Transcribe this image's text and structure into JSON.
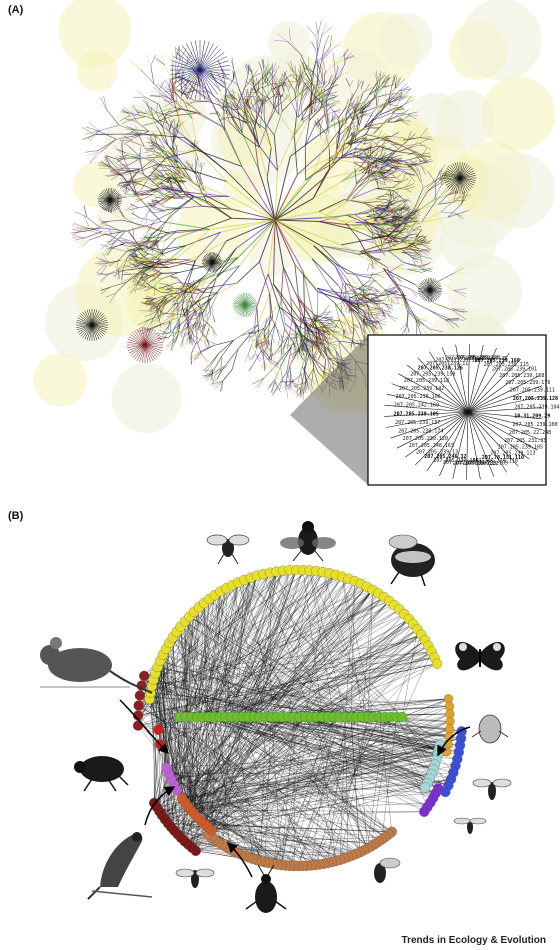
{
  "figure": {
    "panel_a_label": "(A)",
    "panel_b_label": "(B)",
    "footer": "Trends in Ecology & Evolution"
  },
  "inset_labels": [
    "10.31.209.29",
    "207.205.239.100",
    "207.205.22.248",
    "207.205.231.33",
    "207.205.239.105",
    "207.205.239.113",
    "207.78.151.110",
    "207.205.239.110",
    "207.205.239.109",
    "207.205.238.122",
    "207.205.239.117",
    "207.205.239.166",
    "207.205.246.32",
    "207.205.239.13",
    "207.205.248.163",
    "207.205.239.120",
    "207.205.238.174",
    "207.205.239.137",
    "207.205.239.105",
    "207.205.242.160",
    "207.205.236.106",
    "207.205.239.142",
    "207.205.239.118",
    "207.205.239.158",
    "207.205.238.126",
    "207.205.239.11",
    "207.205.239.168",
    "207.205.239.119",
    "207.205.239.138",
    "207.205.239.25",
    "207.205.239.160",
    "207.205.239.115",
    "207.205.239.101",
    "207.205.239.168",
    "207.205.239.176",
    "207.205.239.111",
    "207.205.239.128",
    "207.205.239.104"
  ],
  "palette": {
    "yellow": "#e6e02a",
    "green": "#6bbf2a",
    "amber": "#e0a02a",
    "cyan": "#9fd8d8",
    "blue": "#3a4fd8",
    "violet": "#7b2fd0",
    "brown": "#c07a45",
    "darkred": "#7a1616",
    "orange": "#d05a2a",
    "red": "#cc1f1f",
    "magenta": "#c060d8",
    "maroon": "#8a2020"
  }
}
